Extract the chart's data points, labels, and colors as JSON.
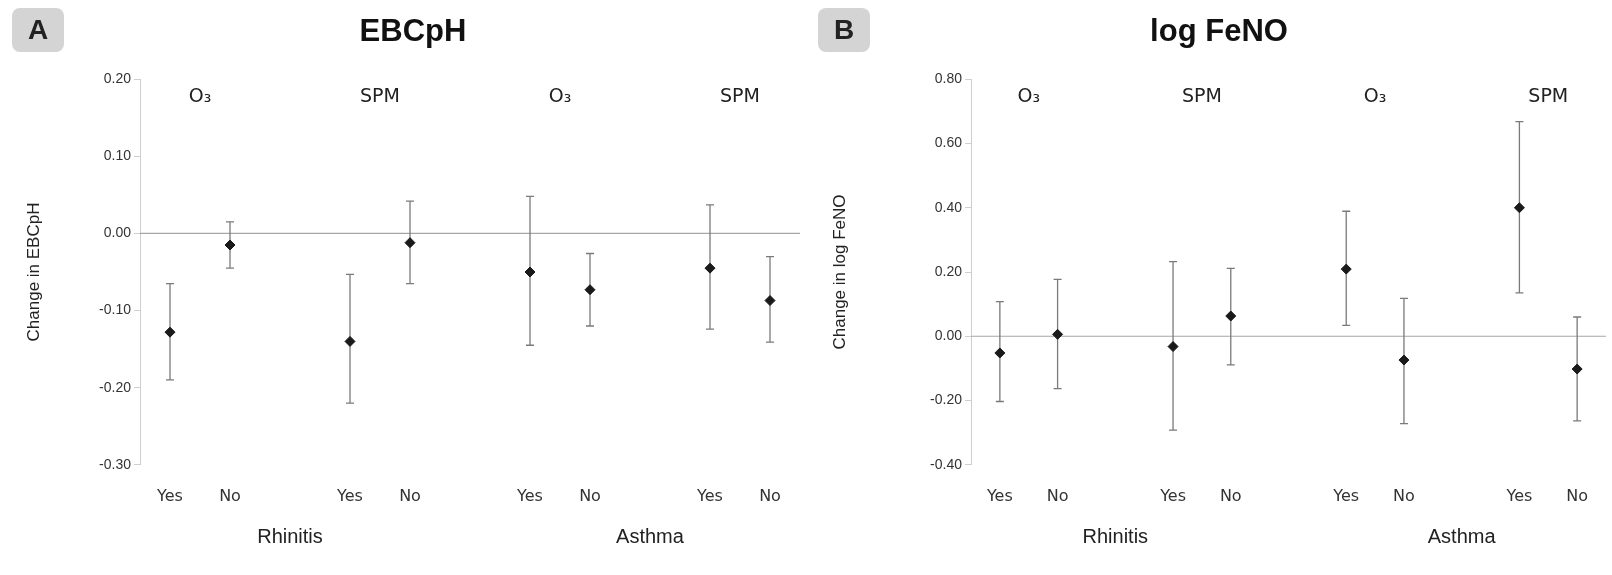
{
  "chart_data": [
    {
      "type": "scatter",
      "title": "EBCpH",
      "ylabel": "Change in EBCpH",
      "categories": [
        "Yes",
        "No",
        null,
        "Yes",
        "No",
        null,
        "Yes",
        "No",
        null,
        "Yes",
        "No"
      ],
      "series": [
        {
          "color": "#1a1a1a",
          "values": [
            -0.128,
            -0.015,
            null,
            -0.14,
            -0.012,
            null,
            -0.05,
            -0.073,
            null,
            -0.045,
            -0.087
          ],
          "errors": [
            [
              -0.19,
              -0.065
            ],
            [
              -0.045,
              0.015
            ],
            null,
            [
              -0.22,
              -0.053
            ],
            [
              -0.065,
              0.042
            ],
            null,
            [
              -0.145,
              0.048
            ],
            [
              -0.12,
              -0.026
            ],
            null,
            [
              -0.124,
              0.037
            ],
            [
              -0.141,
              -0.03
            ]
          ]
        }
      ],
      "marker": "diamond",
      "ylim": [
        -0.3,
        0.2
      ],
      "yticks": [
        {
          "value": -0.3,
          "label": "-0.30"
        },
        {
          "value": -0.2,
          "label": "-0.20"
        },
        {
          "value": -0.1,
          "label": "-0.10"
        },
        {
          "value": 0,
          "label": "0.00"
        },
        {
          "value": 0.1,
          "label": "0.10"
        },
        {
          "value": 0.2,
          "label": "0.20"
        }
      ],
      "ref_lines": [
        {
          "axis": "y",
          "value": 0,
          "color": "#a6a6a6"
        }
      ],
      "annotations": [
        "A",
        "O₃",
        "SPM",
        "O₃",
        "SPM",
        "Rhinitis",
        "Asthma"
      ]
    },
    {
      "type": "scatter",
      "title": "log FeNO",
      "ylabel": "Change in log FeNO",
      "categories": [
        "Yes",
        "No",
        null,
        "Yes",
        "No",
        null,
        "Yes",
        "No",
        null,
        "Yes",
        "No"
      ],
      "series": [
        {
          "color": "#1a1a1a",
          "values": [
            -0.052,
            0.006,
            null,
            -0.032,
            0.063,
            null,
            0.209,
            -0.074,
            null,
            0.4,
            -0.102
          ],
          "errors": [
            [
              -0.203,
              0.108
            ],
            [
              -0.163,
              0.177
            ],
            null,
            [
              -0.292,
              0.232
            ],
            [
              -0.089,
              0.211
            ],
            null,
            [
              0.034,
              0.389
            ],
            [
              -0.272,
              0.118
            ],
            null,
            [
              0.135,
              0.668
            ],
            [
              -0.263,
              0.06
            ]
          ]
        }
      ],
      "marker": "diamond",
      "ylim": [
        -0.4,
        0.8
      ],
      "yticks": [
        {
          "value": -0.4,
          "label": "-0.40"
        },
        {
          "value": -0.2,
          "label": "-0.20"
        },
        {
          "value": 0,
          "label": "0.00"
        },
        {
          "value": 0.2,
          "label": "0.20"
        },
        {
          "value": 0.4,
          "label": "0.40"
        },
        {
          "value": 0.6,
          "label": "0.60"
        },
        {
          "value": 0.8,
          "label": "0.80"
        }
      ],
      "ref_lines": [
        {
          "axis": "y",
          "value": 0,
          "color": "#a6a6a6"
        }
      ],
      "annotations": [
        "B",
        "O₃",
        "SPM",
        "O₃",
        "SPM",
        "Rhinitis",
        "Asthma"
      ]
    }
  ]
}
